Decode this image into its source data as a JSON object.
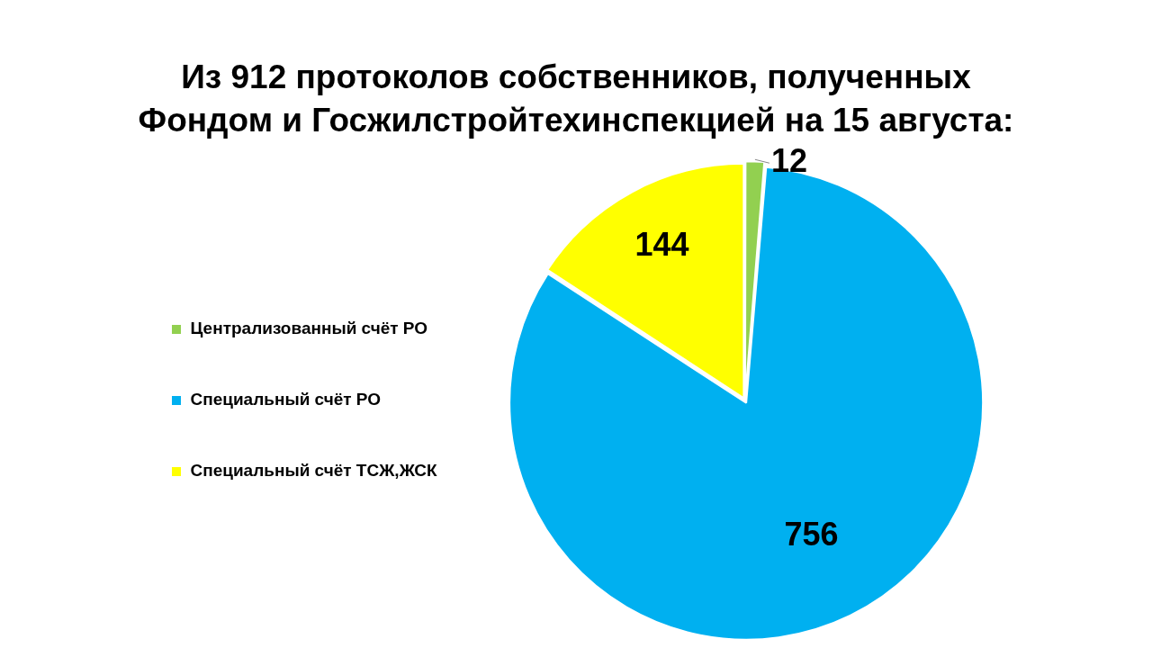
{
  "chart_data": {
    "type": "pie",
    "title": "Из 912 протоколов собственников, полученных Фондом и Госжилстройтехинспекцией на 15 августа:",
    "categories": [
      "Централизованный счёт РО",
      "Специальный счёт РО",
      "Специальный счёт ТСЖ,ЖСК"
    ],
    "values": [
      12,
      756,
      144
    ],
    "colors": [
      "#92d050",
      "#00b0f0",
      "#ffff00"
    ],
    "data_labels": true,
    "legend": "left"
  }
}
